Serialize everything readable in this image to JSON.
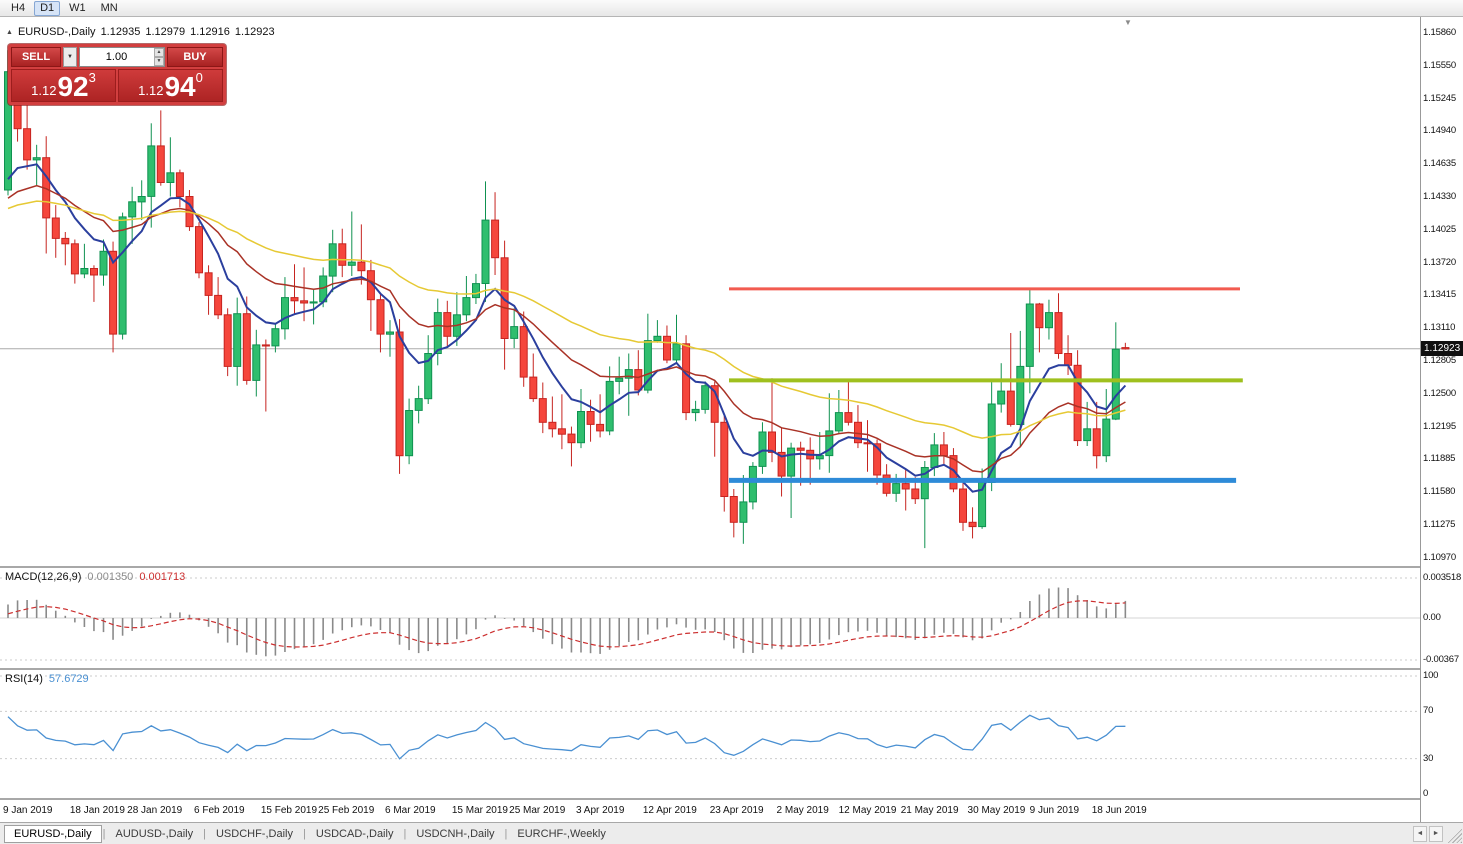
{
  "colors": {
    "background": "#ffffff",
    "candle_up": "#2fbe6e",
    "candle_up_border": "#0f9150",
    "candle_down": "#f5463c",
    "candle_down_border": "#c62420",
    "macd_hist": "#8a8a8a",
    "macd_signal": "#cc2f2f",
    "rsi": "#4a90d2",
    "panel_red": "#d23f3f",
    "button_red": "#a82222"
  },
  "icons": {
    "header_marker": "▲",
    "dropdown": "▼",
    "spinner_up": "▲",
    "spinner_down": "▼",
    "shift_marker": "▼",
    "tab_left": "◄",
    "tab_right": "►"
  },
  "toolbar": {
    "timeframes": [
      "H4",
      "D1",
      "W1",
      "MN"
    ],
    "active_index": 1
  },
  "chart_header": {
    "symbol": "EURUSD-,Daily",
    "open": "1.12935",
    "high": "1.12979",
    "low": "1.12916",
    "close": "1.12923"
  },
  "trade_panel": {
    "sell_label": "SELL",
    "buy_label": "BUY",
    "volume": "1.00",
    "bid": {
      "small": "1.12",
      "big": "92",
      "sup": "3"
    },
    "ask": {
      "small": "1.12",
      "big": "94",
      "sup": "0"
    }
  },
  "price_axis": {
    "current": "1.12923"
  },
  "macd_panel": {
    "name": "MACD(12,26,9)",
    "value_main": "0.001350",
    "value_signal": "0.001713",
    "scale": [
      "0.003518",
      "0.00",
      "-0.00367"
    ]
  },
  "rsi_panel": {
    "name": "RSI(14)",
    "value": "57.6729",
    "scale": [
      "100",
      "70",
      "30",
      "0"
    ]
  },
  "tabs": {
    "items": [
      "EURUSD-,Daily",
      "AUDUSD-,Daily",
      "USDCHF-,Daily",
      "USDCAD-,Daily",
      "USDCNH-,Daily",
      "EURCHF-,Weekly"
    ],
    "active_index": 0
  },
  "chart_data": {
    "type": "candlestick",
    "symbol": "EURUSD-",
    "timeframe": "Daily",
    "current_price": 1.12923,
    "y_axis": {
      "top_value": 1.1586,
      "step": 0.00305,
      "labels": [
        "1.15860",
        "1.15550",
        "1.15245",
        "1.14940",
        "1.14635",
        "1.14330",
        "1.14025",
        "1.13720",
        "1.13415",
        "1.13110",
        "1.12805",
        "1.12500",
        "1.12195",
        "1.11885",
        "1.11580",
        "1.11275",
        "1.10970"
      ]
    },
    "x_labels": [
      {
        "text": "9 Jan 2019",
        "i": 0
      },
      {
        "text": "18 Jan 2019",
        "i": 7
      },
      {
        "text": "28 Jan 2019",
        "i": 13
      },
      {
        "text": "6 Feb 2019",
        "i": 20
      },
      {
        "text": "15 Feb 2019",
        "i": 27
      },
      {
        "text": "25 Feb 2019",
        "i": 33
      },
      {
        "text": "6 Mar 2019",
        "i": 40
      },
      {
        "text": "15 Mar 2019",
        "i": 47
      },
      {
        "text": "25 Mar 2019",
        "i": 53
      },
      {
        "text": "3 Apr 2019",
        "i": 60
      },
      {
        "text": "12 Apr 2019",
        "i": 67
      },
      {
        "text": "23 Apr 2019",
        "i": 74
      },
      {
        "text": "2 May 2019",
        "i": 81
      },
      {
        "text": "12 May 2019",
        "i": 87.5
      },
      {
        "text": "21 May 2019",
        "i": 94
      },
      {
        "text": "30 May 2019",
        "i": 101
      },
      {
        "text": "9 Jun 2019",
        "i": 107.5
      },
      {
        "text": "18 Jun 2019",
        "i": 114
      }
    ],
    "candles": [
      [
        1.144,
        1.157,
        1.1435,
        1.155
      ],
      [
        1.155,
        1.1555,
        1.1485,
        1.1497
      ],
      [
        1.1497,
        1.1541,
        1.1459,
        1.1468
      ],
      [
        1.1468,
        1.1482,
        1.1444,
        1.147
      ],
      [
        1.147,
        1.149,
        1.1381,
        1.1414
      ],
      [
        1.1414,
        1.1426,
        1.1377,
        1.1395
      ],
      [
        1.1395,
        1.1401,
        1.137,
        1.139
      ],
      [
        1.139,
        1.1394,
        1.1353,
        1.1362
      ],
      [
        1.1362,
        1.139,
        1.1358,
        1.1367
      ],
      [
        1.1367,
        1.137,
        1.1336,
        1.1361
      ],
      [
        1.1361,
        1.1394,
        1.1351,
        1.1383
      ],
      [
        1.1383,
        1.1392,
        1.1289,
        1.1306
      ],
      [
        1.1306,
        1.1419,
        1.1301,
        1.1415
      ],
      [
        1.1415,
        1.1443,
        1.139,
        1.1429
      ],
      [
        1.1429,
        1.1449,
        1.1412,
        1.1434
      ],
      [
        1.1434,
        1.1502,
        1.1405,
        1.1481
      ],
      [
        1.1481,
        1.1514,
        1.1444,
        1.1447
      ],
      [
        1.1447,
        1.1489,
        1.1434,
        1.1456
      ],
      [
        1.1456,
        1.1459,
        1.1424,
        1.1434
      ],
      [
        1.1434,
        1.144,
        1.1402,
        1.1406
      ],
      [
        1.1406,
        1.141,
        1.1358,
        1.1363
      ],
      [
        1.1363,
        1.137,
        1.1324,
        1.1342
      ],
      [
        1.1342,
        1.1359,
        1.132,
        1.1324
      ],
      [
        1.1324,
        1.133,
        1.1267,
        1.1276
      ],
      [
        1.1276,
        1.134,
        1.1258,
        1.1325
      ],
      [
        1.1325,
        1.1341,
        1.1259,
        1.1263
      ],
      [
        1.1263,
        1.131,
        1.1248,
        1.1296
      ],
      [
        1.1296,
        1.1301,
        1.1234,
        1.1295
      ],
      [
        1.1295,
        1.1316,
        1.1289,
        1.1311
      ],
      [
        1.1311,
        1.1359,
        1.1301,
        1.134
      ],
      [
        1.134,
        1.1371,
        1.1324,
        1.1337
      ],
      [
        1.1337,
        1.1368,
        1.1318,
        1.1335
      ],
      [
        1.1335,
        1.1347,
        1.1315,
        1.1336
      ],
      [
        1.1336,
        1.1368,
        1.1331,
        1.136
      ],
      [
        1.136,
        1.1403,
        1.1345,
        1.139
      ],
      [
        1.139,
        1.1404,
        1.1359,
        1.137
      ],
      [
        1.137,
        1.142,
        1.136,
        1.1373
      ],
      [
        1.1373,
        1.1408,
        1.1352,
        1.1365
      ],
      [
        1.1365,
        1.1375,
        1.1309,
        1.1338
      ],
      [
        1.1338,
        1.1344,
        1.1289,
        1.1306
      ],
      [
        1.1306,
        1.1319,
        1.1285,
        1.1308
      ],
      [
        1.1308,
        1.132,
        1.1176,
        1.1193
      ],
      [
        1.1193,
        1.1246,
        1.1185,
        1.1235
      ],
      [
        1.1235,
        1.1258,
        1.1223,
        1.1246
      ],
      [
        1.1246,
        1.1305,
        1.1241,
        1.1288
      ],
      [
        1.1288,
        1.1339,
        1.1277,
        1.1326
      ],
      [
        1.1326,
        1.1337,
        1.1294,
        1.1304
      ],
      [
        1.1304,
        1.1345,
        1.1295,
        1.1324
      ],
      [
        1.1324,
        1.136,
        1.1318,
        1.134
      ],
      [
        1.134,
        1.1362,
        1.1334,
        1.1353
      ],
      [
        1.1353,
        1.1448,
        1.1336,
        1.1412
      ],
      [
        1.1412,
        1.1438,
        1.1361,
        1.1377
      ],
      [
        1.1377,
        1.1393,
        1.1273,
        1.1302
      ],
      [
        1.1302,
        1.133,
        1.1293,
        1.1313
      ],
      [
        1.1313,
        1.1327,
        1.1257,
        1.1266
      ],
      [
        1.1266,
        1.1288,
        1.1243,
        1.1246
      ],
      [
        1.1246,
        1.1261,
        1.1214,
        1.1224
      ],
      [
        1.1224,
        1.1248,
        1.121,
        1.1218
      ],
      [
        1.1218,
        1.125,
        1.1199,
        1.1213
      ],
      [
        1.1213,
        1.122,
        1.1183,
        1.1205
      ],
      [
        1.1205,
        1.1255,
        1.12,
        1.1234
      ],
      [
        1.1234,
        1.1245,
        1.1206,
        1.1222
      ],
      [
        1.1222,
        1.125,
        1.121,
        1.1216
      ],
      [
        1.1216,
        1.1276,
        1.1212,
        1.1262
      ],
      [
        1.1262,
        1.1285,
        1.125,
        1.1265
      ],
      [
        1.1265,
        1.1288,
        1.123,
        1.1273
      ],
      [
        1.1273,
        1.1291,
        1.1249,
        1.1254
      ],
      [
        1.1254,
        1.1325,
        1.1251,
        1.13
      ],
      [
        1.13,
        1.1319,
        1.1298,
        1.1304
      ],
      [
        1.1304,
        1.1314,
        1.1279,
        1.1282
      ],
      [
        1.1282,
        1.1324,
        1.128,
        1.1297
      ],
      [
        1.1297,
        1.1305,
        1.1226,
        1.1233
      ],
      [
        1.1233,
        1.1244,
        1.1225,
        1.1236
      ],
      [
        1.1236,
        1.1262,
        1.1232,
        1.1258
      ],
      [
        1.1258,
        1.1262,
        1.1192,
        1.1224
      ],
      [
        1.1224,
        1.123,
        1.1141,
        1.1155
      ],
      [
        1.1155,
        1.1162,
        1.1117,
        1.1131
      ],
      [
        1.1131,
        1.1175,
        1.1111,
        1.115
      ],
      [
        1.115,
        1.1187,
        1.1143,
        1.1183
      ],
      [
        1.1183,
        1.1224,
        1.1176,
        1.1215
      ],
      [
        1.1215,
        1.1265,
        1.1187,
        1.1196
      ],
      [
        1.1196,
        1.1219,
        1.1155,
        1.1174
      ],
      [
        1.1174,
        1.1205,
        1.1135,
        1.12
      ],
      [
        1.12,
        1.1206,
        1.1165,
        1.1198
      ],
      [
        1.1198,
        1.121,
        1.1166,
        1.119
      ],
      [
        1.119,
        1.1215,
        1.118,
        1.1193
      ],
      [
        1.1193,
        1.1251,
        1.1177,
        1.1216
      ],
      [
        1.1216,
        1.1254,
        1.1214,
        1.1233
      ],
      [
        1.1233,
        1.1264,
        1.1221,
        1.1224
      ],
      [
        1.1224,
        1.124,
        1.12,
        1.1205
      ],
      [
        1.1205,
        1.1226,
        1.1178,
        1.1204
      ],
      [
        1.1204,
        1.1208,
        1.1166,
        1.1175
      ],
      [
        1.1175,
        1.1185,
        1.1155,
        1.1158
      ],
      [
        1.1158,
        1.1176,
        1.115,
        1.1167
      ],
      [
        1.1167,
        1.118,
        1.1142,
        1.1162
      ],
      [
        1.1162,
        1.1173,
        1.1148,
        1.1153
      ],
      [
        1.1153,
        1.1188,
        1.1107,
        1.1182
      ],
      [
        1.1182,
        1.1214,
        1.1174,
        1.1203
      ],
      [
        1.1203,
        1.1215,
        1.1184,
        1.1193
      ],
      [
        1.1193,
        1.12,
        1.1159,
        1.1162
      ],
      [
        1.1162,
        1.1172,
        1.1123,
        1.1131
      ],
      [
        1.1131,
        1.1145,
        1.1116,
        1.1127
      ],
      [
        1.1127,
        1.1181,
        1.1125,
        1.1168
      ],
      [
        1.1168,
        1.1263,
        1.116,
        1.1241
      ],
      [
        1.1241,
        1.1279,
        1.1233,
        1.1253
      ],
      [
        1.1253,
        1.1307,
        1.122,
        1.1222
      ],
      [
        1.1222,
        1.1309,
        1.1201,
        1.1276
      ],
      [
        1.1276,
        1.1348,
        1.1251,
        1.1334
      ],
      [
        1.1334,
        1.1335,
        1.1289,
        1.1312
      ],
      [
        1.1312,
        1.1338,
        1.1301,
        1.1326
      ],
      [
        1.1326,
        1.1344,
        1.1283,
        1.1288
      ],
      [
        1.1288,
        1.1305,
        1.1268,
        1.1277
      ],
      [
        1.1277,
        1.1291,
        1.1202,
        1.1207
      ],
      [
        1.1207,
        1.1243,
        1.1202,
        1.1218
      ],
      [
        1.1218,
        1.1243,
        1.1181,
        1.1193
      ],
      [
        1.1193,
        1.1255,
        1.1187,
        1.1227
      ],
      [
        1.1227,
        1.1317,
        1.1226,
        1.1292
      ],
      [
        1.12935,
        1.12979,
        1.12916,
        1.12923
      ]
    ],
    "moving_averages": [
      {
        "period": 8,
        "color": "#2b3f9e",
        "width": 2
      },
      {
        "period": 20,
        "color": "#a93226",
        "width": 1.5
      },
      {
        "period": 45,
        "color": "#e6c934",
        "width": 1.5
      }
    ],
    "hlines": [
      {
        "name": "resistance-line",
        "price": 1.1348,
        "color": "#f25b50",
        "width": 3,
        "i1": 75.5,
        "i2": 129
      },
      {
        "name": "pivot-line",
        "price": 1.1263,
        "color": "#9fc01e",
        "width": 4,
        "i1": 75.5,
        "i2": 129.3
      },
      {
        "name": "support-line",
        "price": 1.117,
        "color": "#2e8bd8",
        "width": 5,
        "i1": 75.5,
        "i2": 128.6
      }
    ],
    "macd": {
      "fast": 12,
      "slow": 26,
      "signal": 9,
      "value_main": 0.00135,
      "value_signal": 0.001713,
      "scale_max": 0.003518,
      "scale_min": -0.00367
    },
    "rsi": {
      "period": 14,
      "value": 57.6729,
      "levels": [
        100,
        70,
        30,
        0
      ]
    }
  }
}
